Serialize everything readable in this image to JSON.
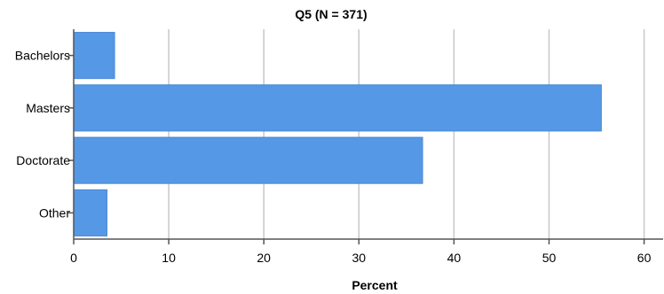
{
  "chart_data": {
    "type": "bar",
    "orientation": "horizontal",
    "title": "Q5 (N = 371)",
    "xlabel": "Percent",
    "ylabel": "",
    "categories": [
      "Bachelors",
      "Masters",
      "Doctorate",
      "Other"
    ],
    "values": [
      4.3,
      55.5,
      36.7,
      3.5
    ],
    "xlim": [
      0,
      62
    ],
    "xticks": [
      "0",
      "10",
      "20",
      "30",
      "40",
      "50",
      "60"
    ],
    "grid": "vertical",
    "bar_color": "#5599e6"
  }
}
